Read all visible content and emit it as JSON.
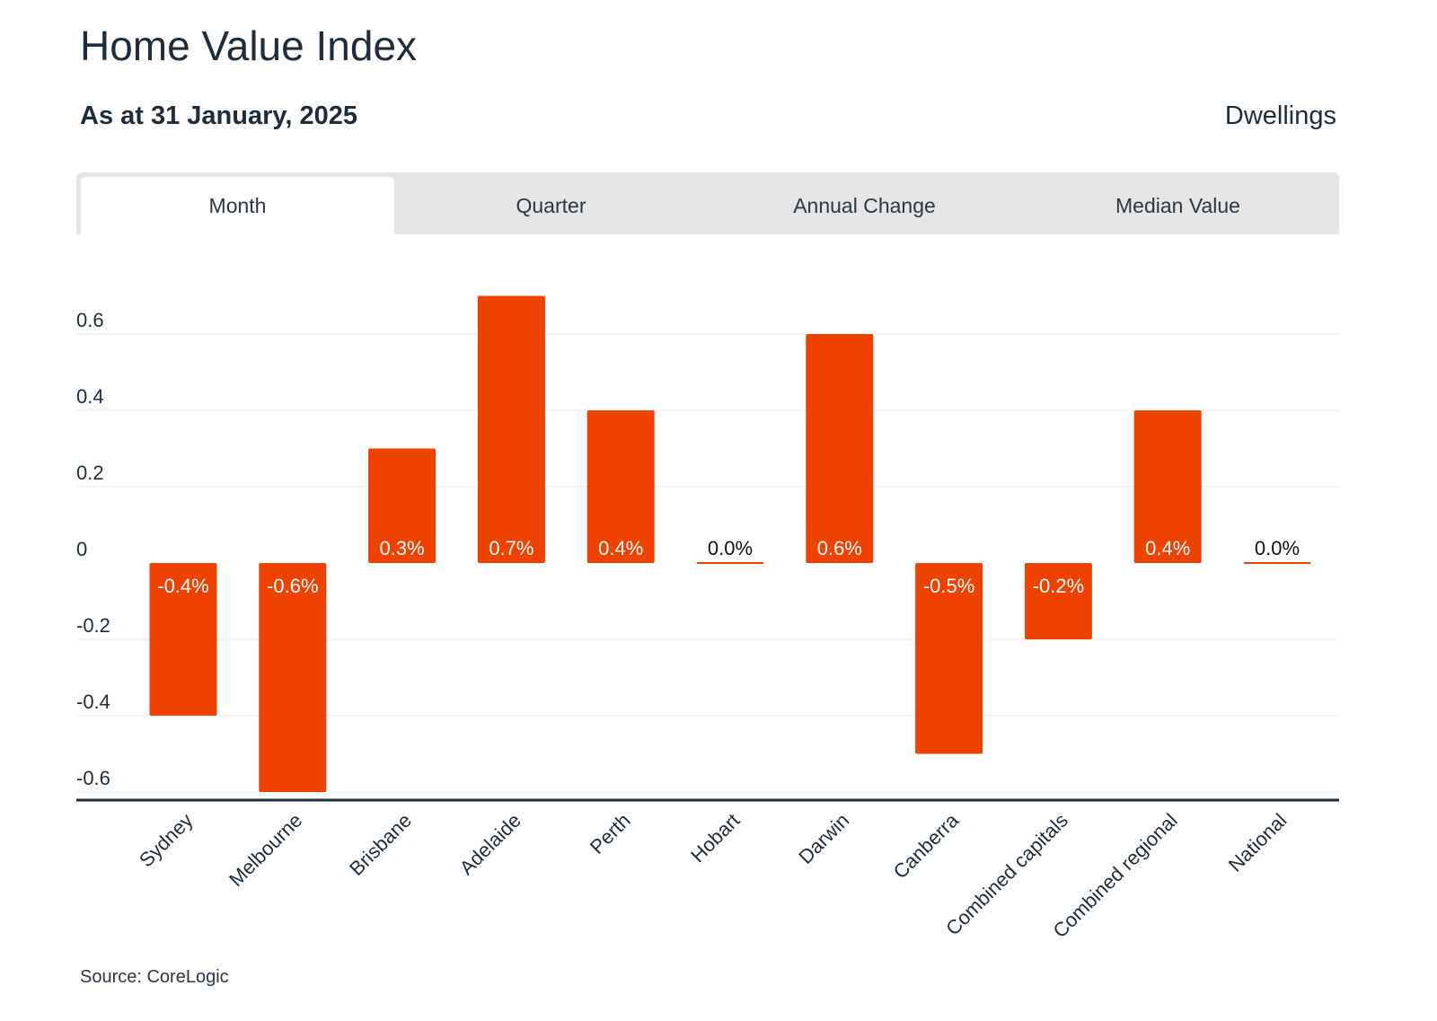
{
  "header": {
    "title": "Home Value Index",
    "subtitle": "As at 31 January, 2025",
    "property_type": "Dwellings"
  },
  "tabs": [
    {
      "label": "Month",
      "active": true
    },
    {
      "label": "Quarter",
      "active": false
    },
    {
      "label": "Annual Change",
      "active": false
    },
    {
      "label": "Median Value",
      "active": false
    }
  ],
  "footer": {
    "source": "Source: CoreLogic"
  },
  "colors": {
    "bar": "#ee4200",
    "text": "#1f2d3a",
    "tab_bg": "#e6e6e6",
    "axis": "#1f2d3a",
    "grid": "#e9e9e9"
  },
  "chart_data": {
    "type": "bar",
    "categories": [
      "Sydney",
      "Melbourne",
      "Brisbane",
      "Adelaide",
      "Perth",
      "Hobart",
      "Darwin",
      "Canberra",
      "Combined capitals",
      "Combined regional",
      "National"
    ],
    "values": [
      -0.4,
      -0.6,
      0.3,
      0.7,
      0.4,
      0.0,
      0.6,
      -0.5,
      -0.2,
      0.4,
      0.0
    ],
    "data_labels": [
      "-0.4%",
      "-0.6%",
      "0.3%",
      "0.7%",
      "0.4%",
      "0.0%",
      "0.6%",
      "-0.5%",
      "-0.2%",
      "0.4%",
      "0.0%"
    ],
    "y_ticks": [
      0.6,
      0.4,
      0.2,
      0,
      -0.2,
      -0.4,
      -0.6
    ],
    "y_tick_labels": [
      "0.6",
      "0.4",
      "0.2",
      "0",
      "-0.2",
      "-0.4",
      "-0.6"
    ],
    "ylim": [
      -0.63,
      0.75
    ],
    "grid": true,
    "legend": "none"
  }
}
